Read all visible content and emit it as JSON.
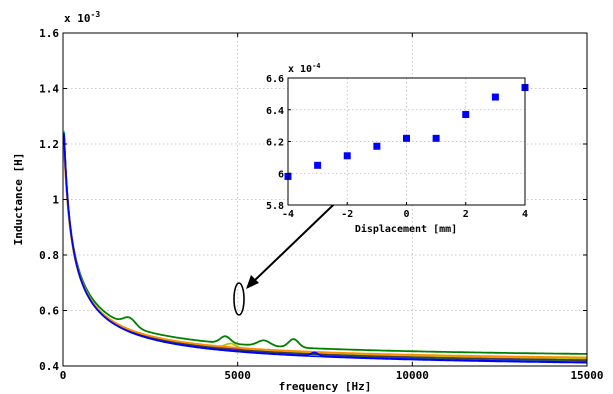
{
  "chart_data": [
    {
      "type": "line",
      "xlabel": "frequency [Hz]",
      "ylabel": "Inductance [H]",
      "exponent_label": "x 10",
      "exponent_power": "-3",
      "xlim": [
        0,
        15000
      ],
      "ylim": [
        0.4,
        1.6
      ],
      "xticks": [
        "0",
        "5000",
        "10000",
        "15000"
      ],
      "yticks": [
        "0.4",
        "0.6",
        "0.8",
        "1",
        "1.2",
        "1.4",
        "1.6"
      ],
      "grid": true,
      "series_colors": [
        "#0000ff",
        "#008000",
        "#ff0000",
        "#00bfbf",
        "#bf00bf",
        "#bfbf00",
        "#404040",
        "#ff8c00",
        "#0000ff"
      ],
      "series": [
        {
          "curve": {
            "a": 0.38,
            "b": 44,
            "p": 0.75,
            "x0": 160
          }
        },
        {
          "curve": {
            "a": 0.418,
            "b": 62,
            "p": 0.81,
            "x0": 190
          },
          "bumps": [
            [
              1900,
              0.03,
              250
            ],
            [
              4650,
              0.025,
              200
            ],
            [
              5750,
              0.02,
              250
            ],
            [
              6600,
              0.03,
              200
            ]
          ]
        },
        {
          "curve": {
            "a": 0.39,
            "b": 49,
            "p": 0.77,
            "x0": 165
          }
        },
        {
          "curve": {
            "a": 0.385,
            "b": 47,
            "p": 0.76,
            "x0": 163
          }
        },
        {
          "curve": {
            "a": 0.395,
            "b": 52,
            "p": 0.78,
            "x0": 170
          }
        },
        {
          "curve": {
            "a": 0.4,
            "b": 55,
            "p": 0.79,
            "x0": 175
          },
          "bumps": [
            [
              4800,
              0.015,
              200
            ]
          ]
        },
        {
          "curve": {
            "a": 0.392,
            "b": 50,
            "p": 0.775,
            "x0": 168
          }
        },
        {
          "curve": {
            "a": 0.405,
            "b": 57,
            "p": 0.8,
            "x0": 180
          }
        },
        {
          "curve": {
            "a": 0.382,
            "b": 45,
            "p": 0.755,
            "x0": 160
          },
          "bumps": [
            [
              7200,
              0.012,
              150
            ]
          ]
        }
      ]
    },
    {
      "type": "scatter",
      "xlabel": "Displacement [mm]",
      "exponent_label": "x 10",
      "exponent_power": "-4",
      "xlim": [
        -4,
        4
      ],
      "ylim": [
        5.8,
        6.6
      ],
      "xticks": [
        "-4",
        "-2",
        "0",
        "2",
        "4"
      ],
      "yticks": [
        "5.8",
        "6",
        "6.2",
        "6.4",
        "6.6"
      ],
      "grid": true,
      "marker_color": "#0000ff",
      "x": [
        -4,
        -3,
        -2,
        -1,
        0,
        1,
        2,
        3,
        4
      ],
      "y": [
        5.98,
        6.05,
        6.11,
        6.17,
        6.22,
        6.22,
        6.37,
        6.48,
        6.54
      ]
    }
  ]
}
